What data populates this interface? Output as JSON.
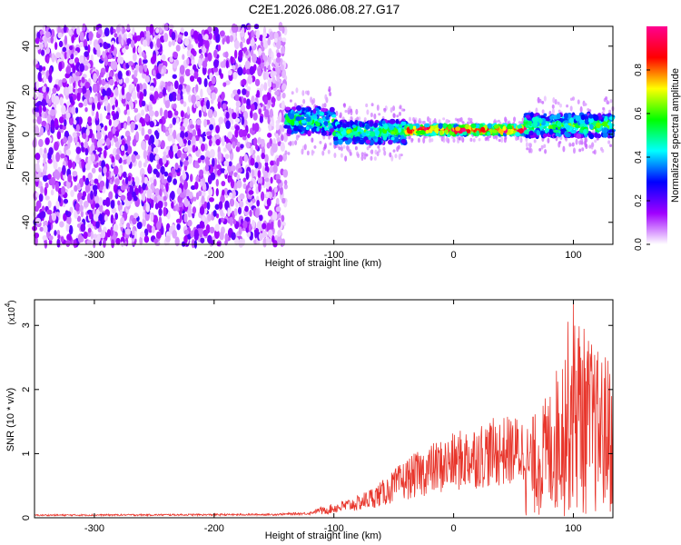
{
  "figure": {
    "title": "C2E1.2026.086.08.27.G17"
  },
  "chart_data": [
    {
      "type": "heatmap",
      "name": "spectrogram",
      "xlabel": "Height of straight line (km)",
      "ylabel": "Frequency (Hz)",
      "xlim": [
        -350,
        133
      ],
      "ylim": [
        -50,
        49
      ],
      "x_ticks": [
        -300,
        -200,
        -100,
        0,
        100
      ],
      "x_tick_labels": [
        "-300",
        "-200",
        "-100",
        "0",
        "100"
      ],
      "y_ticks": [
        -40,
        -20,
        0,
        20,
        40
      ],
      "y_tick_labels": [
        "-40",
        "-20",
        "0",
        "20",
        "40"
      ],
      "noise_region": {
        "x_range": [
          -350,
          -140
        ],
        "frequency_range": [
          -50,
          49
        ],
        "amplitude_range": [
          0.0,
          0.2
        ]
      },
      "signal_band": [
        {
          "x_range": [
            -140,
            -100
          ],
          "center_hz": 6,
          "halfwidth_hz": 6,
          "amplitude": 0.5
        },
        {
          "x_range": [
            -100,
            -40
          ],
          "center_hz": 1,
          "halfwidth_hz": 5,
          "amplitude": 0.55
        },
        {
          "x_range": [
            -40,
            60
          ],
          "center_hz": 2,
          "halfwidth_hz": 2,
          "amplitude": 0.97
        },
        {
          "x_range": [
            60,
            133
          ],
          "center_hz": 4,
          "halfwidth_hz": 5,
          "amplitude": 0.55
        }
      ],
      "colorbar": {
        "label": "Normalized spectral amplitude",
        "range": [
          0,
          1
        ],
        "ticks": [
          0.0,
          0.2,
          0.4,
          0.6,
          0.8
        ],
        "tick_labels": [
          "0.0",
          "0.2",
          "0.4",
          "0.6",
          "0.8"
        ],
        "colors": [
          "#ffffff",
          "#a000ff",
          "#0000ff",
          "#00ffff",
          "#00ff00",
          "#ffff00",
          "#ff0000",
          "#ff0090"
        ]
      }
    },
    {
      "type": "line",
      "name": "snr",
      "xlabel": "Height of straight line (km)",
      "ylabel": "SNR (10 * v/v)",
      "scale_label": "(x10",
      "scale_exponent": "4",
      "xlim": [
        -350,
        133
      ],
      "ylim": [
        0,
        3.4
      ],
      "x_ticks": [
        -300,
        -200,
        -100,
        0,
        100
      ],
      "x_tick_labels": [
        "-300",
        "-200",
        "-100",
        "0",
        "100"
      ],
      "y_ticks": [
        0,
        1,
        2,
        3
      ],
      "y_tick_labels": [
        "0",
        "1",
        "2",
        "3"
      ],
      "color": "#e8362c",
      "envelope_points": {
        "x": [
          -350,
          -150,
          -120,
          -100,
          -80,
          -60,
          -40,
          -20,
          0,
          20,
          40,
          60,
          70,
          80,
          90,
          100,
          110,
          120,
          133
        ],
        "y": [
          0.04,
          0.05,
          0.07,
          0.2,
          0.3,
          0.5,
          0.8,
          1.0,
          1.15,
          1.3,
          1.38,
          1.4,
          1.6,
          1.9,
          2.5,
          3.3,
          2.8,
          2.5,
          2.4
        ]
      }
    }
  ]
}
